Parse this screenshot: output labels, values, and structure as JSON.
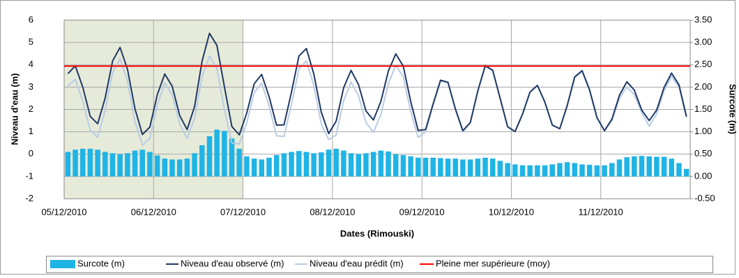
{
  "chart_data": {
    "type": "combo",
    "y_label": "Niveau d'eau (m)",
    "y2_label": "Surcote (m)",
    "x_label": "Dates (Rimouski)",
    "categories": [
      "05/12/2010",
      null,
      null,
      null,
      null,
      null,
      null,
      null,
      null,
      null,
      null,
      null,
      "06/12/2010",
      null,
      null,
      null,
      null,
      null,
      null,
      null,
      null,
      null,
      null,
      null,
      "07/12/2010",
      null,
      null,
      null,
      null,
      null,
      null,
      null,
      null,
      null,
      null,
      null,
      "08/12/2010",
      null,
      null,
      null,
      null,
      null,
      null,
      null,
      null,
      null,
      null,
      null,
      "09/12/2010",
      null,
      null,
      null,
      null,
      null,
      null,
      null,
      null,
      null,
      null,
      null,
      "10/12/2010",
      null,
      null,
      null,
      null,
      null,
      null,
      null,
      null,
      null,
      null,
      null,
      "11/12/2010",
      null,
      null,
      null,
      null,
      null,
      null,
      null,
      null,
      null,
      null,
      null
    ],
    "ylim": [
      -2,
      6
    ],
    "yticks": [
      -2,
      -1,
      0,
      1,
      2,
      3,
      4,
      5,
      6
    ],
    "y2lim": [
      -0.5,
      3.5
    ],
    "y2ticks": [
      {
        "value": -0.5,
        "label": "-0.50"
      },
      {
        "value": 0,
        "label": "0.00"
      },
      {
        "value": 0.5,
        "label": "0.50"
      },
      {
        "value": 1,
        "label": "1.00"
      },
      {
        "value": 1.5,
        "label": "1.50"
      },
      {
        "value": 2,
        "label": "2.00"
      },
      {
        "value": 2.5,
        "label": "2.50"
      },
      {
        "value": 3,
        "label": "3.00"
      },
      {
        "value": 3.5,
        "label": "3.50"
      }
    ],
    "grid": true,
    "series": [
      {
        "name": "Surcote (m)",
        "type": "bar",
        "axis": "y2",
        "color": "#1fb4e6",
        "values": [
          0.55,
          0.6,
          0.62,
          0.62,
          0.6,
          0.55,
          0.52,
          0.5,
          0.52,
          0.58,
          0.6,
          0.55,
          0.47,
          0.4,
          0.38,
          0.38,
          0.4,
          0.52,
          0.7,
          0.9,
          1.05,
          1.02,
          0.85,
          0.62,
          0.45,
          0.4,
          0.38,
          0.42,
          0.48,
          0.52,
          0.55,
          0.57,
          0.55,
          0.52,
          0.54,
          0.6,
          0.62,
          0.58,
          0.52,
          0.5,
          0.52,
          0.55,
          0.58,
          0.56,
          0.5,
          0.48,
          0.45,
          0.42,
          0.42,
          0.42,
          0.41,
          0.4,
          0.4,
          0.38,
          0.38,
          0.4,
          0.42,
          0.4,
          0.35,
          0.3,
          0.27,
          0.25,
          0.25,
          0.25,
          0.25,
          0.27,
          0.3,
          0.32,
          0.3,
          0.27,
          0.26,
          0.25,
          0.25,
          0.3,
          0.38,
          0.43,
          0.45,
          0.46,
          0.45,
          0.44,
          0.44,
          0.4,
          0.3,
          0.17
        ]
      },
      {
        "name": "Niveau d'eau observé (m)",
        "type": "line",
        "color": "#1f3864",
        "values": [
          3.6,
          3.95,
          3.0,
          1.69,
          1.36,
          2.51,
          4.17,
          4.78,
          3.8,
          2.04,
          0.88,
          1.21,
          2.66,
          3.59,
          3.04,
          1.73,
          1.1,
          2.13,
          4.15,
          5.41,
          4.87,
          3.02,
          1.24,
          0.86,
          1.84,
          3.15,
          3.57,
          2.57,
          1.3,
          1.31,
          2.77,
          4.39,
          4.73,
          3.59,
          1.88,
          0.92,
          1.48,
          2.97,
          3.75,
          3.11,
          1.93,
          1.53,
          2.36,
          3.72,
          4.49,
          3.94,
          2.36,
          1.06,
          1.1,
          2.24,
          3.31,
          3.22,
          2.02,
          1.05,
          1.42,
          2.83,
          3.96,
          3.76,
          2.5,
          1.23,
          1.01,
          1.79,
          2.78,
          3.08,
          2.33,
          1.3,
          1.14,
          2.18,
          3.46,
          3.74,
          2.88,
          1.63,
          1.05,
          1.57,
          2.63,
          3.24,
          2.87,
          1.97,
          1.5,
          1.97,
          2.99,
          3.63,
          3.1,
          1.68
        ]
      },
      {
        "name": "Niveau d'eau prédit (m)",
        "type": "line",
        "color": "#b8cce4",
        "values": [
          3.05,
          3.35,
          2.38,
          1.07,
          0.76,
          1.96,
          3.65,
          4.28,
          3.28,
          1.46,
          0.4,
          0.7,
          2.19,
          3.19,
          2.66,
          1.35,
          0.7,
          1.61,
          3.45,
          4.4,
          3.82,
          2.0,
          0.5,
          0.45,
          1.39,
          2.75,
          3.19,
          2.15,
          0.82,
          0.79,
          2.22,
          3.82,
          4.18,
          3.07,
          1.34,
          0.65,
          0.86,
          2.39,
          3.23,
          2.61,
          1.41,
          0.98,
          1.78,
          3.16,
          3.99,
          3.46,
          1.91,
          0.75,
          1.0,
          2.2,
          3.27,
          3.18,
          1.98,
          1.0,
          1.4,
          2.8,
          3.93,
          3.73,
          2.48,
          1.22,
          1.0,
          1.78,
          2.76,
          3.06,
          2.31,
          1.29,
          1.13,
          2.15,
          3.42,
          3.7,
          2.84,
          1.61,
          1.04,
          1.5,
          2.5,
          3.0,
          2.67,
          1.85,
          1.25,
          1.8,
          2.85,
          3.48,
          3.0,
          1.65
        ]
      }
    ],
    "reference_line": {
      "name": "Pleine mer supérieure (moy)",
      "color": "#ff0000",
      "value": 3.94
    }
  }
}
